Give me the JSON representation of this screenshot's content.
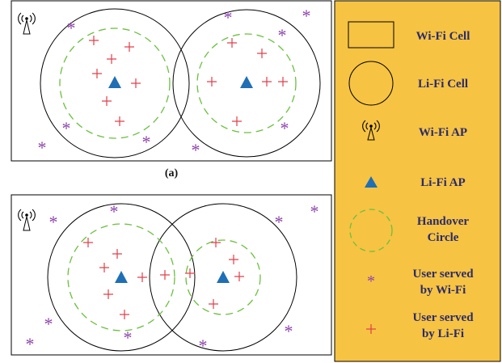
{
  "colors": {
    "legend_background": "#f6c343",
    "user_wifi": "#8e44ad",
    "user_lifi": "#e0404a",
    "lifi_ap": "#1f6fb5",
    "handover_circle": "#6cbf3f",
    "legend_text": "#2b2b6b",
    "outline": "#000000"
  },
  "panels": [
    {
      "label": "(a)"
    },
    {
      "label": ""
    }
  ],
  "legend": {
    "items": [
      {
        "icon": "wifi-cell-rectangle-icon",
        "lines": [
          "Wi-Fi Cell"
        ]
      },
      {
        "icon": "lifi-cell-circle-icon",
        "lines": [
          "Li-Fi Cell"
        ]
      },
      {
        "icon": "wifi-ap-tower-icon",
        "lines": [
          "Wi-Fi AP"
        ]
      },
      {
        "icon": "lifi-ap-triangle-icon",
        "lines": [
          "Li-Fi AP"
        ]
      },
      {
        "icon": "handover-dashed-circle-icon",
        "lines": [
          "Handover",
          "Circle"
        ]
      },
      {
        "icon": "asterisk-user-icon",
        "lines": [
          "User served",
          "by Wi-Fi"
        ]
      },
      {
        "icon": "plus-user-icon",
        "lines": [
          "User served",
          "by Li-Fi"
        ]
      }
    ]
  }
}
